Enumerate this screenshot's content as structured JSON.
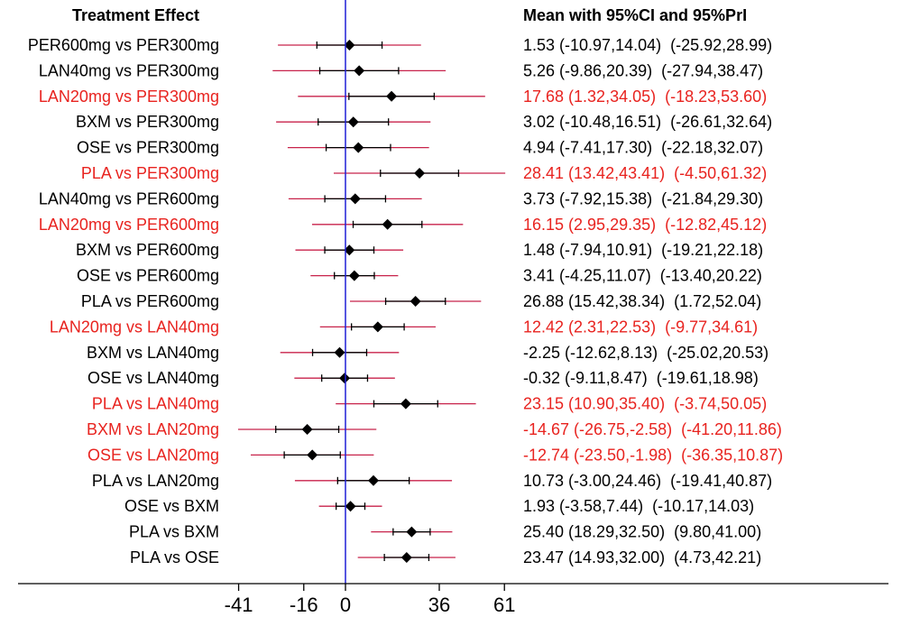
{
  "chart_data": {
    "type": "forest",
    "header_left": "Treatment Effect",
    "header_right": "Mean with 95%CI and 95%PrI",
    "xlim": [
      -41,
      61
    ],
    "x_ticks": [
      -41,
      -16,
      0,
      36,
      61
    ],
    "reference_line": 0,
    "colors": {
      "significant_text": "#e8231f",
      "normal_text": "#000000",
      "pi_line": "#c8234b",
      "ci_line": "#000000",
      "reference_line": "#1f1fd6"
    },
    "rows": [
      {
        "label": "PER600mg vs PER300mg",
        "mean": 1.53,
        "ci": [
          -10.97,
          14.04
        ],
        "pi": [
          -25.92,
          28.99
        ],
        "text": "1.53 (-10.97,14.04)  (-25.92,28.99)",
        "highlight": false
      },
      {
        "label": "LAN40mg vs PER300mg",
        "mean": 5.26,
        "ci": [
          -9.86,
          20.39
        ],
        "pi": [
          -27.94,
          38.47
        ],
        "text": "5.26 (-9.86,20.39)  (-27.94,38.47)",
        "highlight": false
      },
      {
        "label": "LAN20mg vs PER300mg",
        "mean": 17.68,
        "ci": [
          1.32,
          34.05
        ],
        "pi": [
          -18.23,
          53.6
        ],
        "text": "17.68 (1.32,34.05)  (-18.23,53.60)",
        "highlight": true
      },
      {
        "label": "BXM vs PER300mg",
        "mean": 3.02,
        "ci": [
          -10.48,
          16.51
        ],
        "pi": [
          -26.61,
          32.64
        ],
        "text": "3.02 (-10.48,16.51)  (-26.61,32.64)",
        "highlight": false
      },
      {
        "label": "OSE vs PER300mg",
        "mean": 4.94,
        "ci": [
          -7.41,
          17.3
        ],
        "pi": [
          -22.18,
          32.07
        ],
        "text": "4.94 (-7.41,17.30)  (-22.18,32.07)",
        "highlight": false
      },
      {
        "label": "PLA vs PER300mg",
        "mean": 28.41,
        "ci": [
          13.42,
          43.41
        ],
        "pi": [
          -4.5,
          61.32
        ],
        "text": "28.41 (13.42,43.41)  (-4.50,61.32)",
        "highlight": true
      },
      {
        "label": "LAN40mg vs PER600mg",
        "mean": 3.73,
        "ci": [
          -7.92,
          15.38
        ],
        "pi": [
          -21.84,
          29.3
        ],
        "text": "3.73 (-7.92,15.38)  (-21.84,29.30)",
        "highlight": false
      },
      {
        "label": "LAN20mg vs PER600mg",
        "mean": 16.15,
        "ci": [
          2.95,
          29.35
        ],
        "pi": [
          -12.82,
          45.12
        ],
        "text": "16.15 (2.95,29.35)  (-12.82,45.12)",
        "highlight": true
      },
      {
        "label": "BXM vs PER600mg",
        "mean": 1.48,
        "ci": [
          -7.94,
          10.91
        ],
        "pi": [
          -19.21,
          22.18
        ],
        "text": "1.48 (-7.94,10.91)  (-19.21,22.18)",
        "highlight": false
      },
      {
        "label": "OSE vs PER600mg",
        "mean": 3.41,
        "ci": [
          -4.25,
          11.07
        ],
        "pi": [
          -13.4,
          20.22
        ],
        "text": "3.41 (-4.25,11.07)  (-13.40,20.22)",
        "highlight": false
      },
      {
        "label": "PLA vs PER600mg",
        "mean": 26.88,
        "ci": [
          15.42,
          38.34
        ],
        "pi": [
          1.72,
          52.04
        ],
        "text": "26.88 (15.42,38.34)  (1.72,52.04)",
        "highlight": false
      },
      {
        "label": "LAN20mg vs LAN40mg",
        "mean": 12.42,
        "ci": [
          2.31,
          22.53
        ],
        "pi": [
          -9.77,
          34.61
        ],
        "text": "12.42 (2.31,22.53)  (-9.77,34.61)",
        "highlight": true
      },
      {
        "label": "BXM vs LAN40mg",
        "mean": -2.25,
        "ci": [
          -12.62,
          8.13
        ],
        "pi": [
          -25.02,
          20.53
        ],
        "text": "-2.25 (-12.62,8.13)  (-25.02,20.53)",
        "highlight": false
      },
      {
        "label": "OSE vs LAN40mg",
        "mean": -0.32,
        "ci": [
          -9.11,
          8.47
        ],
        "pi": [
          -19.61,
          18.98
        ],
        "text": "-0.32 (-9.11,8.47)  (-19.61,18.98)",
        "highlight": false
      },
      {
        "label": "PLA vs LAN40mg",
        "mean": 23.15,
        "ci": [
          10.9,
          35.4
        ],
        "pi": [
          -3.74,
          50.05
        ],
        "text": "23.15 (10.90,35.40)  (-3.74,50.05)",
        "highlight": true
      },
      {
        "label": "BXM vs LAN20mg",
        "mean": -14.67,
        "ci": [
          -26.75,
          -2.58
        ],
        "pi": [
          -41.2,
          11.86
        ],
        "text": "-14.67 (-26.75,-2.58)  (-41.20,11.86)",
        "highlight": true
      },
      {
        "label": "OSE vs LAN20mg",
        "mean": -12.74,
        "ci": [
          -23.5,
          -1.98
        ],
        "pi": [
          -36.35,
          10.87
        ],
        "text": "-12.74 (-23.50,-1.98)  (-36.35,10.87)",
        "highlight": true
      },
      {
        "label": "PLA vs LAN20mg",
        "mean": 10.73,
        "ci": [
          -3.0,
          24.46
        ],
        "pi": [
          -19.41,
          40.87
        ],
        "text": "10.73 (-3.00,24.46)  (-19.41,40.87)",
        "highlight": false
      },
      {
        "label": "OSE vs BXM",
        "mean": 1.93,
        "ci": [
          -3.58,
          7.44
        ],
        "pi": [
          -10.17,
          14.03
        ],
        "text": "1.93 (-3.58,7.44)  (-10.17,14.03)",
        "highlight": false
      },
      {
        "label": "PLA vs BXM",
        "mean": 25.4,
        "ci": [
          18.29,
          32.5
        ],
        "pi": [
          9.8,
          41.0
        ],
        "text": "25.40 (18.29,32.50)  (9.80,41.00)",
        "highlight": false
      },
      {
        "label": "PLA vs OSE",
        "mean": 23.47,
        "ci": [
          14.93,
          32.0
        ],
        "pi": [
          4.73,
          42.21
        ],
        "text": "23.47 (14.93,32.00)  (4.73,42.21)",
        "highlight": false
      }
    ]
  }
}
